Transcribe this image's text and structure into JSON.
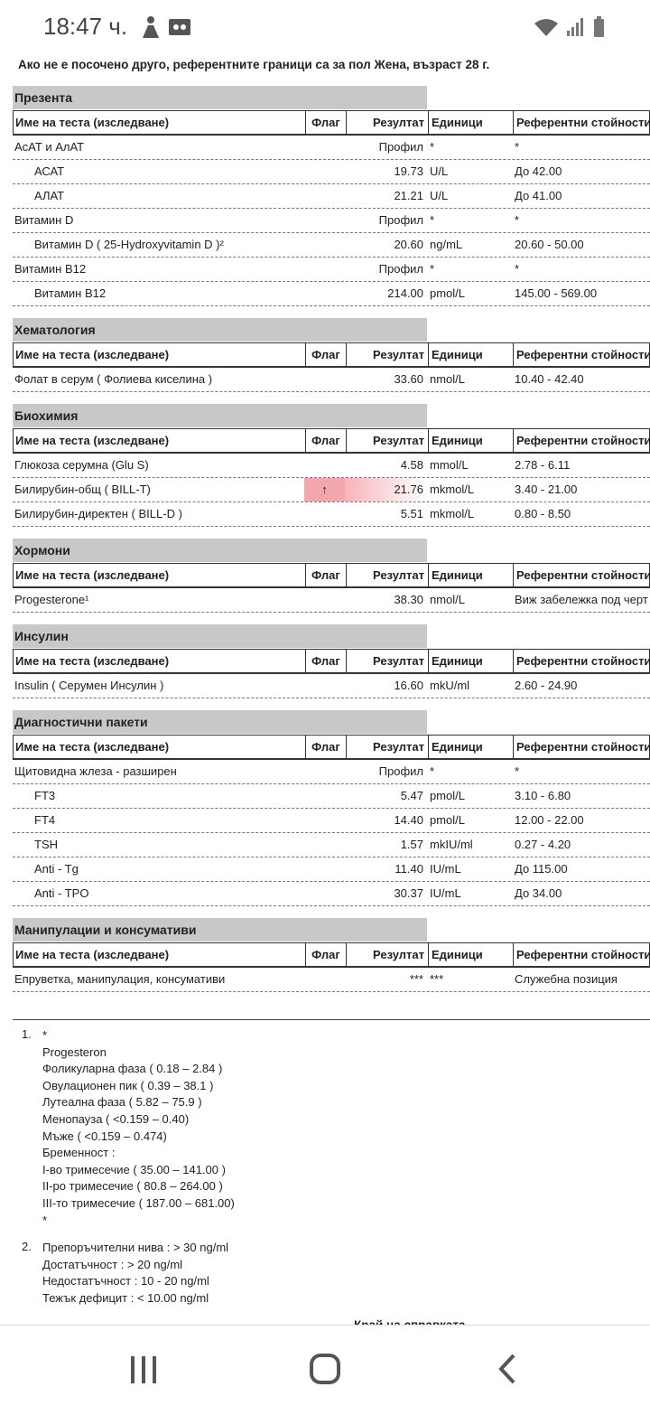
{
  "status": {
    "time": "18:47 ч."
  },
  "intro": "Ако не е посочено друго, референтните граници са за пол Жена, възраст 28 г.",
  "table_header": {
    "name": "Име на теста (изследване)",
    "flag": "Флаг",
    "result": "Резултат",
    "units": "Единици",
    "reference": "Референтни стойности"
  },
  "sections": [
    {
      "title": "Презента",
      "rows": [
        {
          "name": "АсАТ и АлАТ",
          "result": "Профил",
          "units": "*",
          "reference": "*",
          "items": [
            {
              "name": "АСАТ",
              "result": "19.73",
              "units": "U/L",
              "reference": "До 42.00"
            },
            {
              "name": "АЛАТ",
              "result": "21.21",
              "units": "U/L",
              "reference": "До 41.00"
            }
          ]
        },
        {
          "name": "Витамин D",
          "result": "Профил",
          "units": "*",
          "reference": "*",
          "items": [
            {
              "name": "Витамин D ( 25-Hydroxyvitamin D )²",
              "result": "20.60",
              "units": "ng/mL",
              "reference": "20.60 - 50.00"
            }
          ]
        },
        {
          "name": "Витамин B12",
          "result": "Профил",
          "units": "*",
          "reference": "*",
          "items": [
            {
              "name": "Витамин B12",
              "result": "214.00",
              "units": "pmol/L",
              "reference": "145.00 - 569.00"
            }
          ]
        }
      ]
    },
    {
      "title": "Хематология",
      "rows": [
        {
          "name": "Фолат в серум ( Фолиева киселина )",
          "result": "33.60",
          "units": "nmol/L",
          "reference": "10.40 - 42.40"
        }
      ]
    },
    {
      "title": "Биохимия",
      "rows": [
        {
          "name": "Глюкоза серумна (Glu S)",
          "result": "4.58",
          "units": "mmol/L",
          "reference": "2.78 - 6.11"
        },
        {
          "name": "Билирубин-общ ( BILL-T)",
          "flag": "↑",
          "result": "21.76",
          "units": "mkmol/L",
          "reference": "3.40 - 21.00"
        },
        {
          "name": "Билирубин-директен ( BILL-D )",
          "result": "5.51",
          "units": "mkmol/L",
          "reference": "0.80 - 8.50"
        }
      ]
    },
    {
      "title": "Хормони",
      "rows": [
        {
          "name": "Progesterone¹",
          "result": "38.30",
          "units": "nmol/L",
          "reference": "Виж забележка под черт"
        }
      ]
    },
    {
      "title": "Инсулин",
      "rows": [
        {
          "name": "Insulin ( Серумен Инсулин )",
          "result": "16.60",
          "units": "mkU/ml",
          "reference": "2.60 - 24.90"
        }
      ]
    },
    {
      "title": "Диагностични пакети",
      "rows": [
        {
          "name": "Щитовидна жлеза - разширен",
          "result": "Профил",
          "units": "*",
          "reference": "*",
          "items": [
            {
              "name": "FT3",
              "result": "5.47",
              "units": "pmol/L",
              "reference": "3.10 - 6.80"
            },
            {
              "name": "FT4",
              "result": "14.40",
              "units": "pmol/L",
              "reference": "12.00 - 22.00"
            },
            {
              "name": "TSH",
              "result": "1.57",
              "units": "mkIU/ml",
              "reference": "0.27 - 4.20"
            },
            {
              "name": "Anti - Tg",
              "result": "11.40",
              "units": "IU/mL",
              "reference": "До 115.00"
            },
            {
              "name": "Anti - TPO",
              "result": "30.37",
              "units": "IU/mL",
              "reference": "До 34.00"
            }
          ]
        }
      ]
    },
    {
      "title": "Манипулации и консумативи",
      "rows": [
        {
          "name": "Епруветка, манипулация, консумативи",
          "result": "***",
          "units": "***",
          "reference": "Служебна позиция"
        }
      ]
    }
  ],
  "notes": [
    {
      "number": "1.",
      "lines": [
        "*",
        "Progesteron",
        "Фоликуларна фаза ( 0.18 – 2.84 )",
        "Овулационен пик ( 0.39 – 38.1 )",
        "Лутеална фаза ( 5.82 – 75.9 )",
        "Менопауза ( <0.159 – 0.40)",
        "Мъже ( <0.159 – 0.474)",
        "Бременност :",
        "I-во тримесечие ( 35.00 – 141.00 )",
        "II-ро тримесечие ( 80.8 – 264.00 )",
        "III-то тримесечие ( 187.00 – 681.00)",
        "*"
      ]
    },
    {
      "number": "2.",
      "lines": [
        "Препоръчителни нива : > 30 ng/ml",
        "Достатъчност : > 20 ng/ml",
        "Недостатъчност : 10 - 20 ng/ml",
        "Тежък дефицит : < 10.00 ng/ml"
      ]
    }
  ],
  "footer": "Край на справката."
}
